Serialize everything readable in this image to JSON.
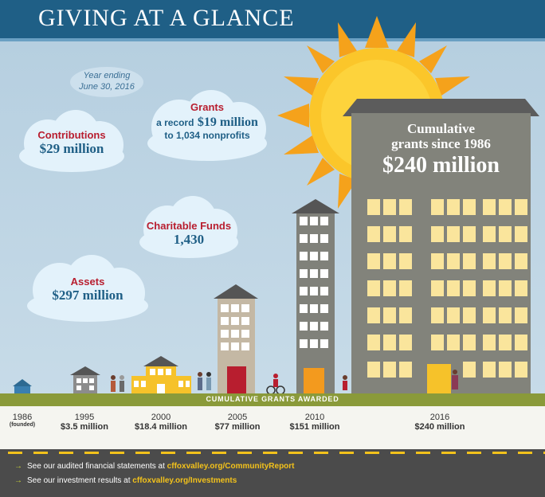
{
  "header": {
    "title": "GIVING AT A GLANCE"
  },
  "note": {
    "line1": "Year ending",
    "line2": "June 30, 2016"
  },
  "clouds": {
    "grants": {
      "title": "Grants",
      "line1_prefix": "a record",
      "line1_value": "$19 million",
      "line2": "to 1,034 nonprofits"
    },
    "contributions": {
      "title": "Contributions",
      "value": "$29 million"
    },
    "funds": {
      "title": "Charitable Funds",
      "value": "1,430"
    },
    "assets": {
      "title": "Assets",
      "value": "$297 million"
    }
  },
  "tower": {
    "title_line1": "Cumulative",
    "title_line2": "grants since 1986",
    "value": "$240 million"
  },
  "band": {
    "label": "CUMULATIVE GRANTS AWARDED"
  },
  "timeline": [
    {
      "year": "1986",
      "amount": "(founded)"
    },
    {
      "year": "1995",
      "amount": "$3.5 million"
    },
    {
      "year": "2000",
      "amount": "$18.4 million"
    },
    {
      "year": "2005",
      "amount": "$77 million"
    },
    {
      "year": "2010",
      "amount": "$151 million"
    },
    {
      "year": "2016",
      "amount": "$240 million"
    }
  ],
  "footer": {
    "line1_text": "See our audited financial statements at",
    "line1_link": "cffoxvalley.org/CommunityReport",
    "line2_text": "See our investment results at",
    "line2_link": "cffoxvalley.org/Investments"
  },
  "colors": {
    "header": "#1f5f86",
    "accent_red": "#b81e2f",
    "accent_blue": "#1f5f86",
    "window": "#fae59c",
    "grass": "#8a9a3a"
  }
}
